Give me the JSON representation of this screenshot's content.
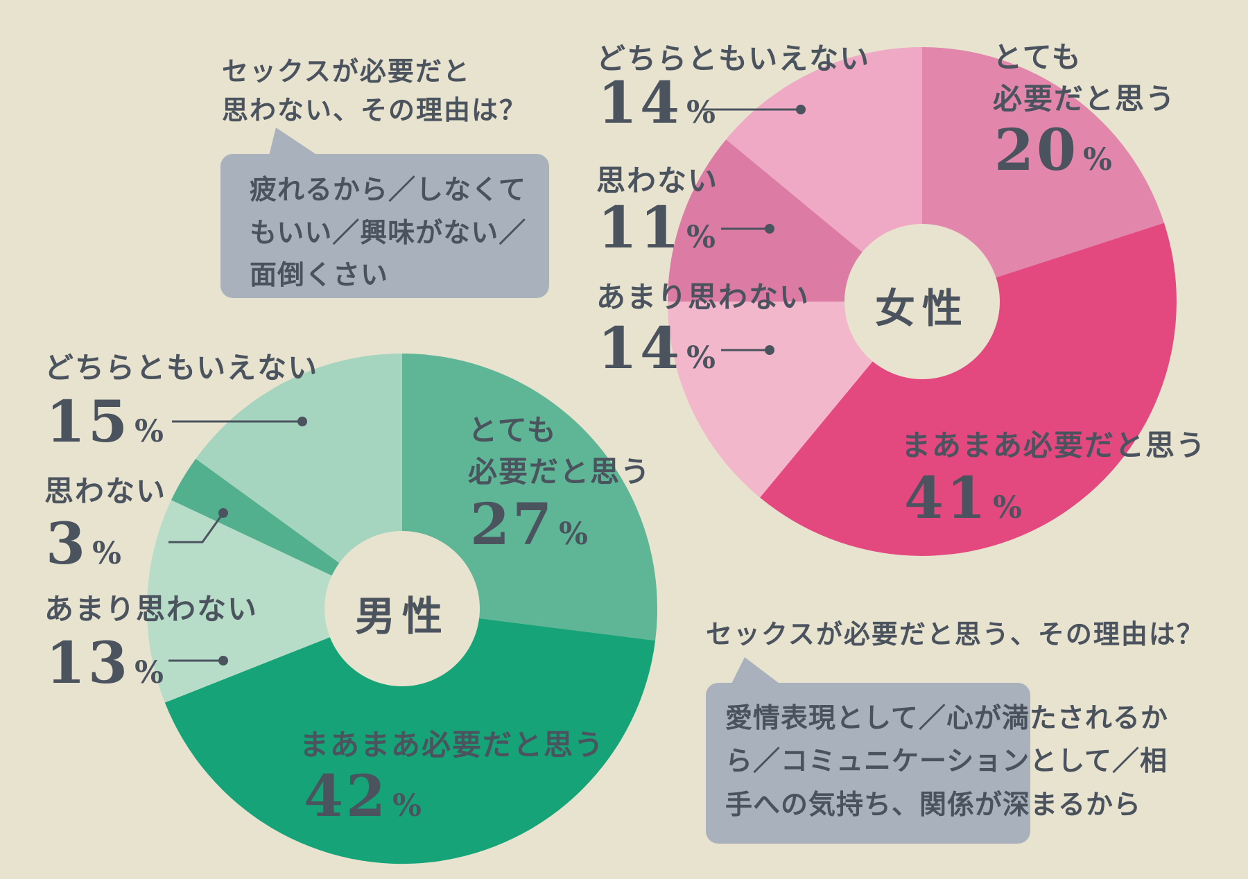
{
  "background": "#e8e3cf",
  "ink_color": "#4a535e",
  "bubble_color": "#a8b1bc",
  "leader_color": "#4a535e",
  "chart_data": [
    {
      "type": "pie",
      "donut": true,
      "group": "女性",
      "unit": "%",
      "legend_position": "around",
      "slices": [
        {
          "label": "とても必要だと思う",
          "label_lines": [
            "とても",
            "必要だと思う"
          ],
          "value": 20,
          "color": "#e287ab"
        },
        {
          "label": "まあまあ必要だと思う",
          "value": 41,
          "color": "#e3487f"
        },
        {
          "label": "あまり思わない",
          "value": 14,
          "color": "#f3b7cb"
        },
        {
          "label": "思わない",
          "value": 11,
          "color": "#dc7ba3"
        },
        {
          "label": "どちらともいえない",
          "value": 14,
          "color": "#efa9c4"
        }
      ]
    },
    {
      "type": "pie",
      "donut": true,
      "group": "男性",
      "unit": "%",
      "legend_position": "around",
      "slices": [
        {
          "label": "とても必要だと思う",
          "label_lines": [
            "とても",
            "必要だと思う"
          ],
          "value": 27,
          "color": "#5eb696"
        },
        {
          "label": "まあまあ必要だと思う",
          "value": 42,
          "color": "#16a377"
        },
        {
          "label": "あまり思わない",
          "value": 13,
          "color": "#b7dcc8"
        },
        {
          "label": "思わない",
          "value": 3,
          "color": "#53b08f"
        },
        {
          "label": "どちらともいえない",
          "value": 15,
          "color": "#a5d4bf"
        }
      ]
    }
  ],
  "callouts": [
    {
      "question_lines": [
        "セックスが必要だと",
        "思わない、その理由は？"
      ],
      "answer_lines": [
        "疲れるから／しなくて",
        "もいい／興味がない／",
        "面倒くさい"
      ]
    },
    {
      "question_lines": [
        "セックスが必要だと思う、その理由は？"
      ],
      "answer_lines": [
        "愛情表現として／心が満たされるか",
        "ら／コミュニケーションとして／相",
        "手への気持ち、関係が深まるから"
      ]
    }
  ]
}
